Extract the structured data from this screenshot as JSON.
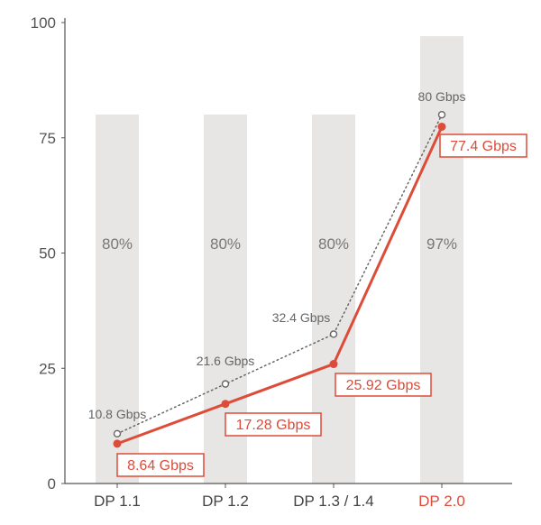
{
  "chart_data": {
    "type": "bar",
    "title": "",
    "xlabel": "",
    "ylabel": "",
    "ylim": [
      0,
      100
    ],
    "yticks": [
      0,
      25,
      50,
      75,
      100
    ],
    "grid": false,
    "categories": [
      "DP 1.1",
      "DP 1.2",
      "DP 1.3 / 1.4",
      "DP 2.0"
    ],
    "highlight_category": "DP 2.0",
    "bars": {
      "values": [
        80,
        80,
        80,
        97
      ],
      "labels": [
        "80%",
        "80%",
        "80%",
        "97%"
      ]
    },
    "series": [
      {
        "style": "dotted line, open circle markers",
        "values": [
          10.8,
          21.6,
          32.4,
          80
        ],
        "labels": [
          "10.8 Gbps",
          "21.6 Gbps",
          "32.4 Gbps",
          "80 Gbps"
        ]
      },
      {
        "style": "solid line, filled circle markers, boxed labels",
        "values": [
          8.64,
          17.28,
          25.92,
          77.4
        ],
        "labels": [
          "8.64 Gbps",
          "17.28 Gbps",
          "25.92 Gbps",
          "77.4 Gbps"
        ]
      }
    ],
    "colors": {
      "bar": "#e8e6e4",
      "axis": "#555555",
      "raw_line": "#666666",
      "accent": "#dd4b39",
      "category_text": "#444444"
    }
  }
}
